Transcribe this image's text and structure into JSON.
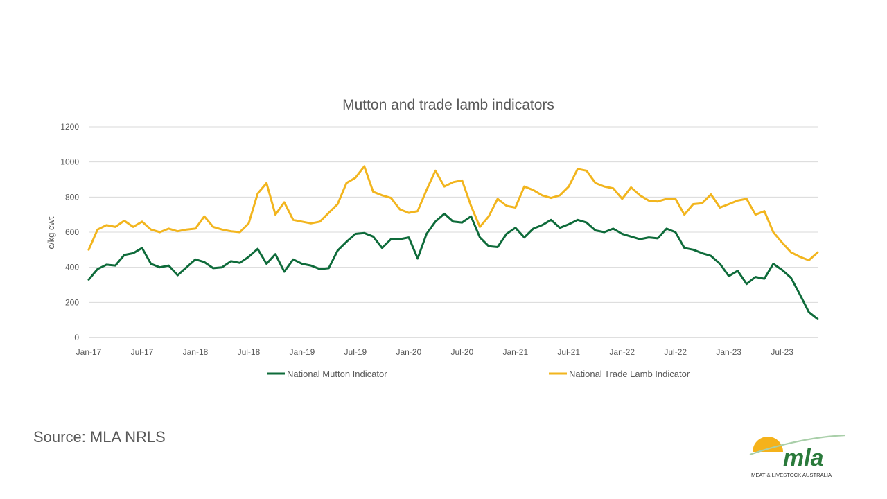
{
  "chart_data": {
    "type": "line",
    "title": "Mutton and trade lamb indicators",
    "ylabel": "c/kg cwt",
    "xlabel": "",
    "ylim": [
      0,
      1200
    ],
    "yticks": [
      0,
      200,
      400,
      600,
      800,
      1000,
      1200
    ],
    "xlim": [
      "2017-01",
      "2023-11"
    ],
    "xticks": [
      {
        "date": "2017-01",
        "label": "Jan-17"
      },
      {
        "date": "2017-07",
        "label": "Jul-17"
      },
      {
        "date": "2018-01",
        "label": "Jan-18"
      },
      {
        "date": "2018-07",
        "label": "Jul-18"
      },
      {
        "date": "2019-01",
        "label": "Jan-19"
      },
      {
        "date": "2019-07",
        "label": "Jul-19"
      },
      {
        "date": "2020-01",
        "label": "Jan-20"
      },
      {
        "date": "2020-07",
        "label": "Jul-20"
      },
      {
        "date": "2021-01",
        "label": "Jan-21"
      },
      {
        "date": "2021-07",
        "label": "Jul-21"
      },
      {
        "date": "2022-01",
        "label": "Jan-22"
      },
      {
        "date": "2022-07",
        "label": "Jul-22"
      },
      {
        "date": "2023-01",
        "label": "Jan-23"
      },
      {
        "date": "2023-07",
        "label": "Jul-23"
      }
    ],
    "grid": true,
    "legend_position": "bottom",
    "series": [
      {
        "name": "National Mutton Indicator",
        "color": "#0E6B3A",
        "points": [
          [
            "2017-01",
            330
          ],
          [
            "2017-02",
            390
          ],
          [
            "2017-03",
            415
          ],
          [
            "2017-04",
            410
          ],
          [
            "2017-05",
            470
          ],
          [
            "2017-06",
            480
          ],
          [
            "2017-07",
            510
          ],
          [
            "2017-08",
            420
          ],
          [
            "2017-09",
            400
          ],
          [
            "2017-10",
            410
          ],
          [
            "2017-11",
            355
          ],
          [
            "2017-12",
            400
          ],
          [
            "2018-01",
            445
          ],
          [
            "2018-02",
            430
          ],
          [
            "2018-03",
            395
          ],
          [
            "2018-04",
            400
          ],
          [
            "2018-05",
            435
          ],
          [
            "2018-06",
            425
          ],
          [
            "2018-07",
            460
          ],
          [
            "2018-08",
            505
          ],
          [
            "2018-09",
            420
          ],
          [
            "2018-10",
            475
          ],
          [
            "2018-11",
            375
          ],
          [
            "2018-12",
            445
          ],
          [
            "2019-01",
            420
          ],
          [
            "2019-02",
            410
          ],
          [
            "2019-03",
            390
          ],
          [
            "2019-04",
            395
          ],
          [
            "2019-05",
            495
          ],
          [
            "2019-06",
            545
          ],
          [
            "2019-07",
            590
          ],
          [
            "2019-08",
            595
          ],
          [
            "2019-09",
            575
          ],
          [
            "2019-10",
            510
          ],
          [
            "2019-11",
            560
          ],
          [
            "2019-12",
            560
          ],
          [
            "2020-01",
            570
          ],
          [
            "2020-02",
            450
          ],
          [
            "2020-03",
            590
          ],
          [
            "2020-04",
            660
          ],
          [
            "2020-05",
            705
          ],
          [
            "2020-06",
            660
          ],
          [
            "2020-07",
            655
          ],
          [
            "2020-08",
            690
          ],
          [
            "2020-09",
            570
          ],
          [
            "2020-10",
            520
          ],
          [
            "2020-11",
            515
          ],
          [
            "2020-12",
            590
          ],
          [
            "2021-01",
            625
          ],
          [
            "2021-02",
            570
          ],
          [
            "2021-03",
            620
          ],
          [
            "2021-04",
            640
          ],
          [
            "2021-05",
            670
          ],
          [
            "2021-06",
            625
          ],
          [
            "2021-07",
            645
          ],
          [
            "2021-08",
            670
          ],
          [
            "2021-09",
            655
          ],
          [
            "2021-10",
            610
          ],
          [
            "2021-11",
            600
          ],
          [
            "2021-12",
            620
          ],
          [
            "2022-01",
            590
          ],
          [
            "2022-02",
            575
          ],
          [
            "2022-03",
            560
          ],
          [
            "2022-04",
            570
          ],
          [
            "2022-05",
            565
          ],
          [
            "2022-06",
            620
          ],
          [
            "2022-07",
            600
          ],
          [
            "2022-08",
            510
          ],
          [
            "2022-09",
            500
          ],
          [
            "2022-10",
            480
          ],
          [
            "2022-11",
            465
          ],
          [
            "2022-12",
            420
          ],
          [
            "2023-01",
            350
          ],
          [
            "2023-02",
            380
          ],
          [
            "2023-03",
            305
          ],
          [
            "2023-04",
            345
          ],
          [
            "2023-05",
            335
          ],
          [
            "2023-06",
            420
          ],
          [
            "2023-07",
            385
          ],
          [
            "2023-08",
            340
          ],
          [
            "2023-09",
            245
          ],
          [
            "2023-10",
            145
          ],
          [
            "2023-11",
            105
          ]
        ]
      },
      {
        "name": "National Trade Lamb Indicator",
        "color": "#F2B51E",
        "points": [
          [
            "2017-01",
            500
          ],
          [
            "2017-02",
            615
          ],
          [
            "2017-03",
            640
          ],
          [
            "2017-04",
            630
          ],
          [
            "2017-05",
            665
          ],
          [
            "2017-06",
            630
          ],
          [
            "2017-07",
            660
          ],
          [
            "2017-08",
            615
          ],
          [
            "2017-09",
            600
          ],
          [
            "2017-10",
            620
          ],
          [
            "2017-11",
            605
          ],
          [
            "2017-12",
            615
          ],
          [
            "2018-01",
            620
          ],
          [
            "2018-02",
            690
          ],
          [
            "2018-03",
            630
          ],
          [
            "2018-04",
            615
          ],
          [
            "2018-05",
            605
          ],
          [
            "2018-06",
            600
          ],
          [
            "2018-07",
            650
          ],
          [
            "2018-08",
            820
          ],
          [
            "2018-09",
            880
          ],
          [
            "2018-10",
            700
          ],
          [
            "2018-11",
            770
          ],
          [
            "2018-12",
            670
          ],
          [
            "2019-01",
            660
          ],
          [
            "2019-02",
            650
          ],
          [
            "2019-03",
            660
          ],
          [
            "2019-04",
            710
          ],
          [
            "2019-05",
            760
          ],
          [
            "2019-06",
            880
          ],
          [
            "2019-07",
            910
          ],
          [
            "2019-08",
            975
          ],
          [
            "2019-09",
            830
          ],
          [
            "2019-10",
            810
          ],
          [
            "2019-11",
            795
          ],
          [
            "2019-12",
            730
          ],
          [
            "2020-01",
            710
          ],
          [
            "2020-02",
            720
          ],
          [
            "2020-03",
            840
          ],
          [
            "2020-04",
            950
          ],
          [
            "2020-05",
            860
          ],
          [
            "2020-06",
            885
          ],
          [
            "2020-07",
            895
          ],
          [
            "2020-08",
            750
          ],
          [
            "2020-09",
            630
          ],
          [
            "2020-10",
            690
          ],
          [
            "2020-11",
            790
          ],
          [
            "2020-12",
            750
          ],
          [
            "2021-01",
            740
          ],
          [
            "2021-02",
            860
          ],
          [
            "2021-03",
            840
          ],
          [
            "2021-04",
            810
          ],
          [
            "2021-05",
            795
          ],
          [
            "2021-06",
            810
          ],
          [
            "2021-07",
            860
          ],
          [
            "2021-08",
            960
          ],
          [
            "2021-09",
            950
          ],
          [
            "2021-10",
            880
          ],
          [
            "2021-11",
            860
          ],
          [
            "2021-12",
            850
          ],
          [
            "2022-01",
            790
          ],
          [
            "2022-02",
            855
          ],
          [
            "2022-03",
            810
          ],
          [
            "2022-04",
            780
          ],
          [
            "2022-05",
            775
          ],
          [
            "2022-06",
            790
          ],
          [
            "2022-07",
            790
          ],
          [
            "2022-08",
            700
          ],
          [
            "2022-09",
            760
          ],
          [
            "2022-10",
            765
          ],
          [
            "2022-11",
            815
          ],
          [
            "2022-12",
            740
          ],
          [
            "2023-01",
            760
          ],
          [
            "2023-02",
            780
          ],
          [
            "2023-03",
            790
          ],
          [
            "2023-04",
            700
          ],
          [
            "2023-05",
            720
          ],
          [
            "2023-06",
            600
          ],
          [
            "2023-07",
            540
          ],
          [
            "2023-08",
            485
          ],
          [
            "2023-09",
            460
          ],
          [
            "2023-10",
            440
          ],
          [
            "2023-11",
            485
          ]
        ]
      }
    ]
  },
  "footer": {
    "source": "Source: MLA NRLS"
  },
  "logo": {
    "wordmark": "mla",
    "tagline": "MEAT & LIVESTOCK AUSTRALIA",
    "colors": {
      "green": "#2A7A3B",
      "yellow": "#F5B21A"
    }
  }
}
